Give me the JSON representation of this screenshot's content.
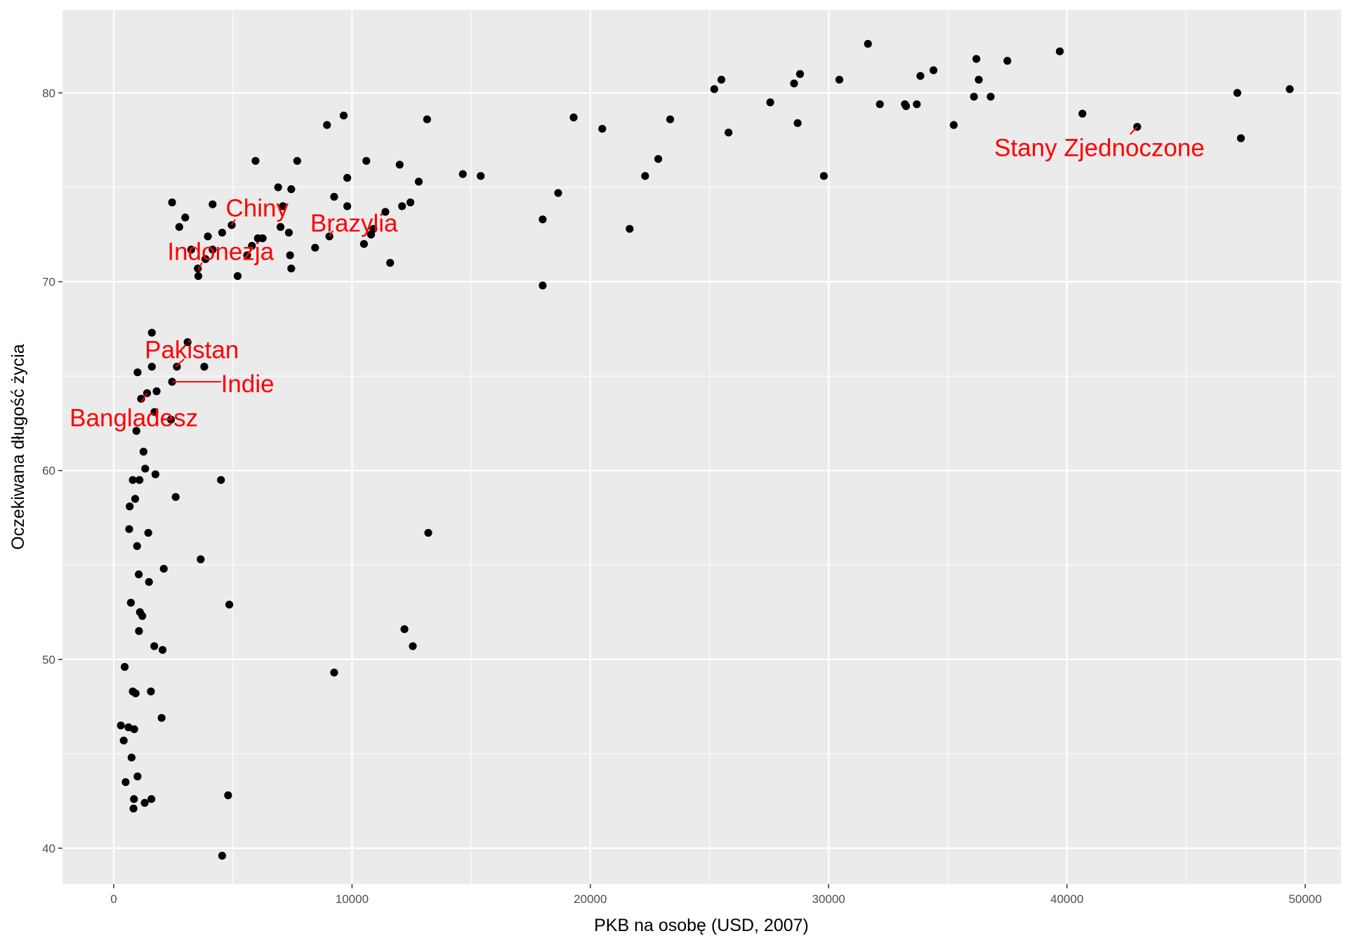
{
  "chart_data": {
    "type": "scatter",
    "xlabel": "PKB na osobę (USD, 2007)",
    "ylabel": "Oczekiwana długość życia",
    "xlim": [
      -2150,
      51500
    ],
    "ylim": [
      38.1,
      84.4
    ],
    "x_ticks": [
      0,
      10000,
      20000,
      30000,
      40000,
      50000
    ],
    "y_ticks": [
      40,
      50,
      60,
      70,
      80
    ],
    "x_tick_labels": [
      "0",
      "10000",
      "20000",
      "30000",
      "40000",
      "50000"
    ],
    "y_tick_labels": [
      "40",
      "50",
      "60",
      "70",
      "80"
    ],
    "grid": true,
    "colors": {
      "panel": "#ebebeb",
      "grid": "#ffffff",
      "point": "#000000",
      "annotation": "#ff0000"
    },
    "points": [
      [
        300,
        46.5
      ],
      [
        420,
        45.7
      ],
      [
        460,
        49.6
      ],
      [
        500,
        43.5
      ],
      [
        620,
        46.4
      ],
      [
        650,
        56.9
      ],
      [
        670,
        58.1
      ],
      [
        720,
        53.0
      ],
      [
        750,
        44.8
      ],
      [
        800,
        48.3
      ],
      [
        800,
        59.5
      ],
      [
        830,
        42.1
      ],
      [
        850,
        42.6
      ],
      [
        860,
        46.3
      ],
      [
        900,
        58.5
      ],
      [
        920,
        48.2
      ],
      [
        950,
        62.1
      ],
      [
        980,
        56.0
      ],
      [
        1000,
        43.8
      ],
      [
        1000,
        65.2
      ],
      [
        1050,
        54.5
      ],
      [
        1060,
        51.5
      ],
      [
        1080,
        59.5
      ],
      [
        1100,
        52.5
      ],
      [
        1150,
        63.8
      ],
      [
        1200,
        52.3
      ],
      [
        1250,
        61.0
      ],
      [
        1300,
        42.4
      ],
      [
        1320,
        60.1
      ],
      [
        1400,
        64.1
      ],
      [
        1450,
        56.7
      ],
      [
        1480,
        54.1
      ],
      [
        1560,
        48.3
      ],
      [
        1580,
        42.6
      ],
      [
        1600,
        65.5
      ],
      [
        1600,
        67.3
      ],
      [
        1700,
        50.7
      ],
      [
        1710,
        63.1
      ],
      [
        1750,
        59.8
      ],
      [
        1800,
        64.2
      ],
      [
        2010,
        46.9
      ],
      [
        2050,
        50.5
      ],
      [
        2100,
        54.8
      ],
      [
        2400,
        62.7
      ],
      [
        2450,
        64.7
      ],
      [
        2450,
        74.2
      ],
      [
        2600,
        58.6
      ],
      [
        2650,
        65.5
      ],
      [
        2750,
        72.9
      ],
      [
        3000,
        73.4
      ],
      [
        3100,
        66.8
      ],
      [
        3250,
        71.7
      ],
      [
        3530,
        70.7
      ],
      [
        3550,
        70.3
      ],
      [
        3650,
        55.3
      ],
      [
        3800,
        65.5
      ],
      [
        3850,
        71.2
      ],
      [
        3950,
        72.4
      ],
      [
        4150,
        71.7
      ],
      [
        4150,
        74.1
      ],
      [
        4500,
        59.5
      ],
      [
        4550,
        39.6
      ],
      [
        4550,
        72.6
      ],
      [
        4800,
        42.8
      ],
      [
        4850,
        52.9
      ],
      [
        4950,
        73.0
      ],
      [
        5200,
        70.3
      ],
      [
        5600,
        71.4
      ],
      [
        5800,
        71.9
      ],
      [
        5950,
        76.4
      ],
      [
        6050,
        72.3
      ],
      [
        6250,
        72.3
      ],
      [
        6900,
        75.0
      ],
      [
        7000,
        72.9
      ],
      [
        7100,
        74.0
      ],
      [
        7350,
        72.6
      ],
      [
        7400,
        71.4
      ],
      [
        7450,
        74.9
      ],
      [
        7450,
        70.7
      ],
      [
        7700,
        76.4
      ],
      [
        8450,
        71.8
      ],
      [
        8950,
        78.3
      ],
      [
        9050,
        72.4
      ],
      [
        9250,
        74.5
      ],
      [
        9250,
        49.3
      ],
      [
        9650,
        78.8
      ],
      [
        9800,
        74.0
      ],
      [
        9800,
        75.5
      ],
      [
        10500,
        72.0
      ],
      [
        10600,
        76.4
      ],
      [
        10800,
        72.5
      ],
      [
        10900,
        72.8
      ],
      [
        11400,
        73.7
      ],
      [
        11600,
        71.0
      ],
      [
        12000,
        76.2
      ],
      [
        12100,
        74.0
      ],
      [
        12200,
        51.6
      ],
      [
        12450,
        74.2
      ],
      [
        12550,
        50.7
      ],
      [
        12800,
        75.3
      ],
      [
        13150,
        78.6
      ],
      [
        13200,
        56.7
      ],
      [
        14650,
        75.7
      ],
      [
        15400,
        75.6
      ],
      [
        18000,
        69.8
      ],
      [
        18000,
        73.3
      ],
      [
        18650,
        74.7
      ],
      [
        19300,
        78.7
      ],
      [
        20500,
        78.1
      ],
      [
        21650,
        72.8
      ],
      [
        22300,
        75.6
      ],
      [
        22850,
        76.5
      ],
      [
        23350,
        78.6
      ],
      [
        25200,
        80.2
      ],
      [
        25500,
        80.7
      ],
      [
        25800,
        77.9
      ],
      [
        27550,
        79.5
      ],
      [
        28550,
        80.5
      ],
      [
        28700,
        78.4
      ],
      [
        28800,
        81.0
      ],
      [
        29800,
        75.6
      ],
      [
        30450,
        80.7
      ],
      [
        31650,
        82.6
      ],
      [
        32150,
        79.4
      ],
      [
        33200,
        79.4
      ],
      [
        33250,
        79.3
      ],
      [
        33700,
        79.4
      ],
      [
        33850,
        80.9
      ],
      [
        34400,
        81.2
      ],
      [
        35250,
        78.3
      ],
      [
        36100,
        79.8
      ],
      [
        36200,
        81.8
      ],
      [
        36300,
        80.7
      ],
      [
        36800,
        79.8
      ],
      [
        37500,
        81.7
      ],
      [
        39700,
        82.2
      ],
      [
        40650,
        78.9
      ],
      [
        42950,
        78.2
      ],
      [
        47150,
        80.0
      ],
      [
        47300,
        77.6
      ],
      [
        49350,
        80.2
      ]
    ],
    "annotations": [
      {
        "label": "Chiny",
        "x": 4950,
        "y": 73.0,
        "tx": 4700,
        "ty": 73.9,
        "anchor": "start",
        "lx": 5100,
        "ly": 73.3
      },
      {
        "label": "Indonezja",
        "x": 3550,
        "y": 70.6,
        "tx": 2250,
        "ty": 71.6,
        "anchor": "start",
        "lx": 3700,
        "ly": 71.0
      },
      {
        "label": "Brazylia",
        "x": 9050,
        "y": 72.4,
        "tx": 8250,
        "ty": 73.1,
        "anchor": "start",
        "lx": 9200,
        "ly": 72.7
      },
      {
        "label": "Pakistan",
        "x": 2600,
        "y": 65.5,
        "tx": 1300,
        "ty": 66.4,
        "anchor": "start",
        "lx": 2950,
        "ly": 65.9
      },
      {
        "label": "Indie",
        "x": 2450,
        "y": 64.7,
        "tx": 4500,
        "ty": 64.6,
        "anchor": "start",
        "lx": 4500,
        "ly": 64.7
      },
      {
        "label": "Bangladesz",
        "x": 1400,
        "y": 64.1,
        "tx": -1850,
        "ty": 62.8,
        "anchor": "start",
        "lx": 1150,
        "ly": 63.6
      },
      {
        "label": "Stany Zjednoczone",
        "x": 42950,
        "y": 78.2,
        "tx": 36950,
        "ty": 77.1,
        "anchor": "start",
        "lx": 42650,
        "ly": 77.8
      }
    ]
  }
}
